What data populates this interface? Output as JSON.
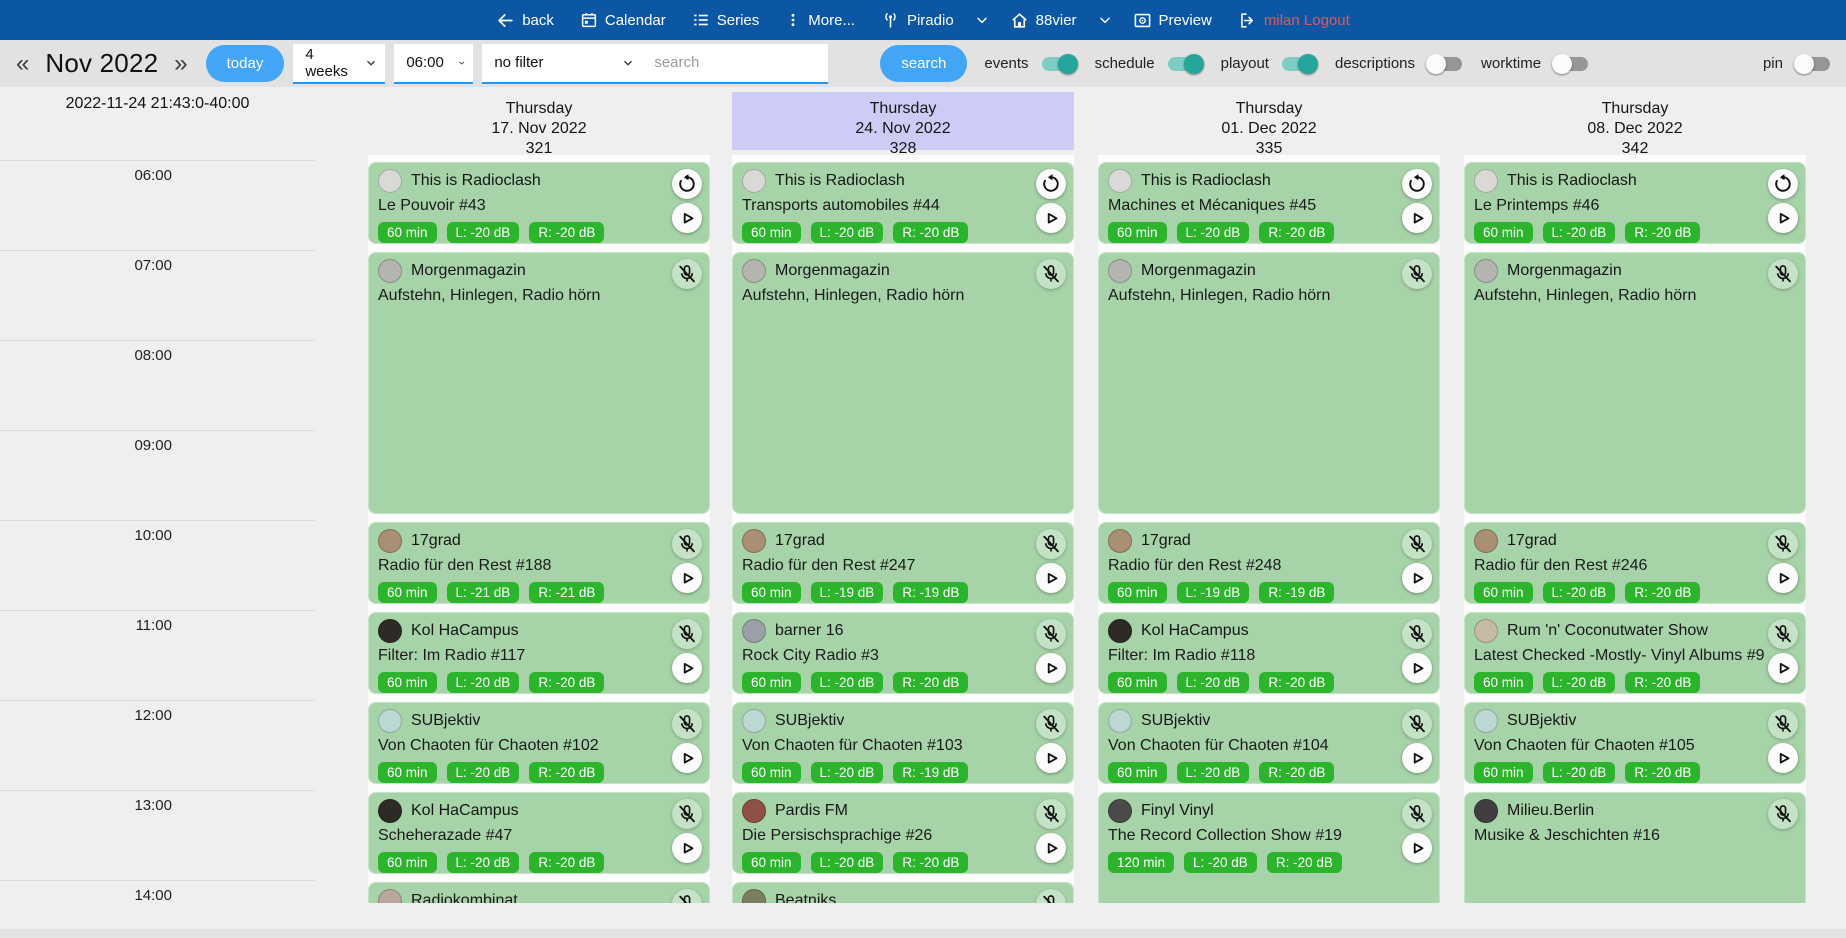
{
  "nav": {
    "back": "back",
    "calendar": "Calendar",
    "series": "Series",
    "more": "More...",
    "station": "Piradio",
    "channel": "88vier",
    "preview": "Preview",
    "logout": "milan Logout"
  },
  "toolbar": {
    "prev": "«",
    "month": "Nov 2022",
    "next": "»",
    "today": "today",
    "range_select": "4 weeks",
    "time_select": "06:00",
    "filter_select": "no filter",
    "search_placeholder": "search",
    "search_button": "search",
    "toggles": [
      {
        "label": "events",
        "on": true
      },
      {
        "label": "schedule",
        "on": true
      },
      {
        "label": "playout",
        "on": true
      },
      {
        "label": "descriptions",
        "on": false
      },
      {
        "label": "worktime",
        "on": false
      }
    ],
    "pin": {
      "label": "pin",
      "on": false
    }
  },
  "colors": {
    "nav_bar": "#0b57a4",
    "logout_text": "#e25757",
    "accent_blue": "#42a5f5",
    "underline_blue": "#2196f3",
    "toolbar_bg": "#e2e2e2",
    "page_bg": "#efefef",
    "card_green": "#a6d3a8",
    "badge_green": "#2cb52c",
    "highlight_purple": "#cdccf7",
    "toggle_on_thumb": "#26a69a",
    "toggle_on_track": "#7fccc4"
  },
  "timeline": {
    "now_label": "2022-11-24 21:43:0-40:00",
    "hours": [
      "06:00",
      "07:00",
      "08:00",
      "09:00",
      "10:00",
      "11:00",
      "12:00",
      "13:00",
      "14:00"
    ]
  },
  "columns": [
    {
      "weekday": "Thursday",
      "date": "17. Nov 2022",
      "week": "321",
      "highlight": false,
      "events": [
        {
          "title": "This is Radioclash",
          "subtitle": "Le Pouvoir #43",
          "start": 6,
          "dur": 1,
          "badges": [
            "60 min",
            "L: -20 dB",
            "R: -20 dB"
          ],
          "top_icon": "replay",
          "play": true,
          "avatar": "#d9d9d6"
        },
        {
          "title": "Morgenmagazin",
          "subtitle": "Aufstehn, Hinlegen, Radio hörn",
          "start": 7,
          "dur": 3,
          "badges": [],
          "top_icon": "micoff",
          "play": false,
          "avatar": "#b4b4b0"
        },
        {
          "title": "17grad",
          "subtitle": "Radio für den Rest #188",
          "start": 10,
          "dur": 1,
          "badges": [
            "60 min",
            "L: -21 dB",
            "R: -21 dB"
          ],
          "top_icon": "micoff",
          "play": true,
          "avatar": "#a98f73"
        },
        {
          "title": "Kol HaCampus",
          "subtitle": "Filter: Im Radio #117",
          "start": 11,
          "dur": 1,
          "badges": [
            "60 min",
            "L: -20 dB",
            "R: -20 dB"
          ],
          "top_icon": "micoff",
          "play": true,
          "avatar": "#2e2a26"
        },
        {
          "title": "SUBjektiv",
          "subtitle": "Von Chaoten für Chaoten #102",
          "start": 12,
          "dur": 1,
          "badges": [
            "60 min",
            "L: -20 dB",
            "R: -20 dB"
          ],
          "top_icon": "micoff",
          "play": true,
          "avatar": "#bcd8d2"
        },
        {
          "title": "Kol HaCampus",
          "subtitle": "Scheherazade #47",
          "start": 13,
          "dur": 1,
          "badges": [
            "60 min",
            "L: -20 dB",
            "R: -20 dB"
          ],
          "top_icon": "micoff",
          "play": true,
          "avatar": "#2e2a26"
        },
        {
          "title": "Radiokombinat",
          "subtitle": "",
          "start": 14,
          "dur": 1,
          "badges": [],
          "top_icon": "micoff",
          "play": false,
          "avatar": "#b9a79d"
        }
      ]
    },
    {
      "weekday": "Thursday",
      "date": "24. Nov 2022",
      "week": "328",
      "highlight": true,
      "events": [
        {
          "title": "This is Radioclash",
          "subtitle": "Transports automobiles #44",
          "start": 6,
          "dur": 1,
          "badges": [
            "60 min",
            "L: -20 dB",
            "R: -20 dB"
          ],
          "top_icon": "replay",
          "play": true,
          "avatar": "#d9d9d6"
        },
        {
          "title": "Morgenmagazin",
          "subtitle": "Aufstehn, Hinlegen, Radio hörn",
          "start": 7,
          "dur": 3,
          "badges": [],
          "top_icon": "micoff",
          "play": false,
          "avatar": "#b4b4b0"
        },
        {
          "title": "17grad",
          "subtitle": "Radio für den Rest #247",
          "start": 10,
          "dur": 1,
          "badges": [
            "60 min",
            "L: -19 dB",
            "R: -19 dB"
          ],
          "top_icon": "micoff",
          "play": true,
          "avatar": "#a98f73"
        },
        {
          "title": "barner 16",
          "subtitle": "Rock City Radio #3",
          "start": 11,
          "dur": 1,
          "badges": [
            "60 min",
            "L: -20 dB",
            "R: -20 dB"
          ],
          "top_icon": "micoff",
          "play": true,
          "avatar": "#9aa0a6"
        },
        {
          "title": "SUBjektiv",
          "subtitle": "Von Chaoten für Chaoten #103",
          "start": 12,
          "dur": 1,
          "badges": [
            "60 min",
            "L: -20 dB",
            "R: -19 dB"
          ],
          "top_icon": "micoff",
          "play": true,
          "avatar": "#bcd8d2"
        },
        {
          "title": "Pardis FM",
          "subtitle": "Die Persischsprachige #26",
          "start": 13,
          "dur": 1,
          "badges": [
            "60 min",
            "L: -20 dB",
            "R: -20 dB"
          ],
          "top_icon": "micoff",
          "play": true,
          "avatar": "#8d5147"
        },
        {
          "title": "Beatniks",
          "subtitle": "",
          "start": 14,
          "dur": 1,
          "badges": [],
          "top_icon": "micoff",
          "play": false,
          "avatar": "#7c7f5e"
        }
      ]
    },
    {
      "weekday": "Thursday",
      "date": "01. Dec 2022",
      "week": "335",
      "highlight": false,
      "events": [
        {
          "title": "This is Radioclash",
          "subtitle": "Machines et Mécaniques #45",
          "start": 6,
          "dur": 1,
          "badges": [
            "60 min",
            "L: -20 dB",
            "R: -20 dB"
          ],
          "top_icon": "replay",
          "play": true,
          "avatar": "#d9d9d6"
        },
        {
          "title": "Morgenmagazin",
          "subtitle": "Aufstehn, Hinlegen, Radio hörn",
          "start": 7,
          "dur": 3,
          "badges": [],
          "top_icon": "micoff",
          "play": false,
          "avatar": "#b4b4b0"
        },
        {
          "title": "17grad",
          "subtitle": "Radio für den Rest #248",
          "start": 10,
          "dur": 1,
          "badges": [
            "60 min",
            "L: -19 dB",
            "R: -19 dB"
          ],
          "top_icon": "micoff",
          "play": true,
          "avatar": "#a98f73"
        },
        {
          "title": "Kol HaCampus",
          "subtitle": "Filter: Im Radio #118",
          "start": 11,
          "dur": 1,
          "badges": [
            "60 min",
            "L: -20 dB",
            "R: -20 dB"
          ],
          "top_icon": "micoff",
          "play": true,
          "avatar": "#2e2a26"
        },
        {
          "title": "SUBjektiv",
          "subtitle": "Von Chaoten für Chaoten #104",
          "start": 12,
          "dur": 1,
          "badges": [
            "60 min",
            "L: -20 dB",
            "R: -20 dB"
          ],
          "top_icon": "micoff",
          "play": true,
          "avatar": "#bcd8d2"
        },
        {
          "title": "Finyl Vinyl",
          "subtitle": "The Record Collection Show #19",
          "start": 13,
          "dur": 2,
          "badges": [
            "120 min",
            "L: -20 dB",
            "R: -20 dB"
          ],
          "top_icon": "micoff",
          "play": true,
          "avatar": "#4a4a4a"
        }
      ]
    },
    {
      "weekday": "Thursday",
      "date": "08. Dec 2022",
      "week": "342",
      "highlight": false,
      "events": [
        {
          "title": "This is Radioclash",
          "subtitle": "Le Printemps #46",
          "start": 6,
          "dur": 1,
          "badges": [
            "60 min",
            "L: -20 dB",
            "R: -20 dB"
          ],
          "top_icon": "replay",
          "play": true,
          "avatar": "#d9d9d6"
        },
        {
          "title": "Morgenmagazin",
          "subtitle": "Aufstehn, Hinlegen, Radio hörn",
          "start": 7,
          "dur": 3,
          "badges": [],
          "top_icon": "micoff",
          "play": false,
          "avatar": "#b4b4b0"
        },
        {
          "title": "17grad",
          "subtitle": "Radio für den Rest #246",
          "start": 10,
          "dur": 1,
          "badges": [
            "60 min",
            "L: -20 dB",
            "R: -20 dB"
          ],
          "top_icon": "micoff",
          "play": true,
          "avatar": "#a98f73"
        },
        {
          "title": "Rum 'n' Coconutwater Show",
          "subtitle": "Latest Checked -Mostly- Vinyl Albums #9",
          "start": 11,
          "dur": 1,
          "badges": [
            "60 min",
            "L: -20 dB",
            "R: -20 dB"
          ],
          "top_icon": "micoff",
          "play": true,
          "avatar": "#c6bba4"
        },
        {
          "title": "SUBjektiv",
          "subtitle": "Von Chaoten für Chaoten #105",
          "start": 12,
          "dur": 1,
          "badges": [
            "60 min",
            "L: -20 dB",
            "R: -20 dB"
          ],
          "top_icon": "micoff",
          "play": true,
          "avatar": "#bcd8d2"
        },
        {
          "title": "Milieu.Berlin",
          "subtitle": "Musike & Jeschichten #16",
          "start": 13,
          "dur": 2,
          "badges": [],
          "top_icon": "micoff",
          "play": false,
          "avatar": "#3f3f3f"
        }
      ]
    }
  ]
}
